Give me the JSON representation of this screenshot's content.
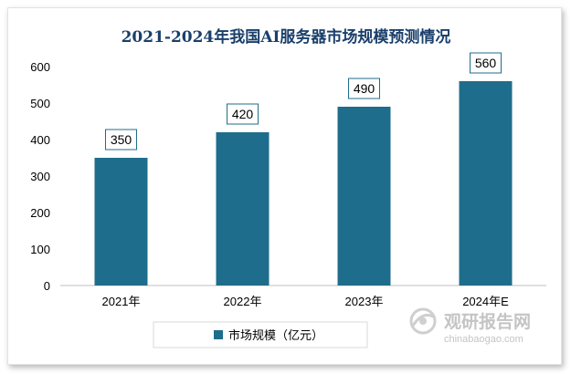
{
  "chart_data": {
    "type": "bar",
    "title": "2021-2024年我国AI服务器市场规模预测情况",
    "categories": [
      "2021年",
      "2022年",
      "2023年",
      "2024年E"
    ],
    "series": [
      {
        "name": "市场规模（亿元）",
        "values": [
          350,
          420,
          490,
          560
        ]
      }
    ],
    "data_labels": [
      "350",
      "420",
      "490",
      "560"
    ],
    "y_ticks": [
      "0",
      "100",
      "200",
      "300",
      "400",
      "500",
      "600"
    ],
    "ylim": [
      0,
      600
    ],
    "grid": false,
    "legend_position": "bottom-left",
    "colors": {
      "bar": "#1f6d8c",
      "title": "#1a3f6b",
      "label_border": "#1f6d8c"
    }
  },
  "watermark": {
    "name": "观研报告网",
    "url": "chinabaogao.com"
  }
}
